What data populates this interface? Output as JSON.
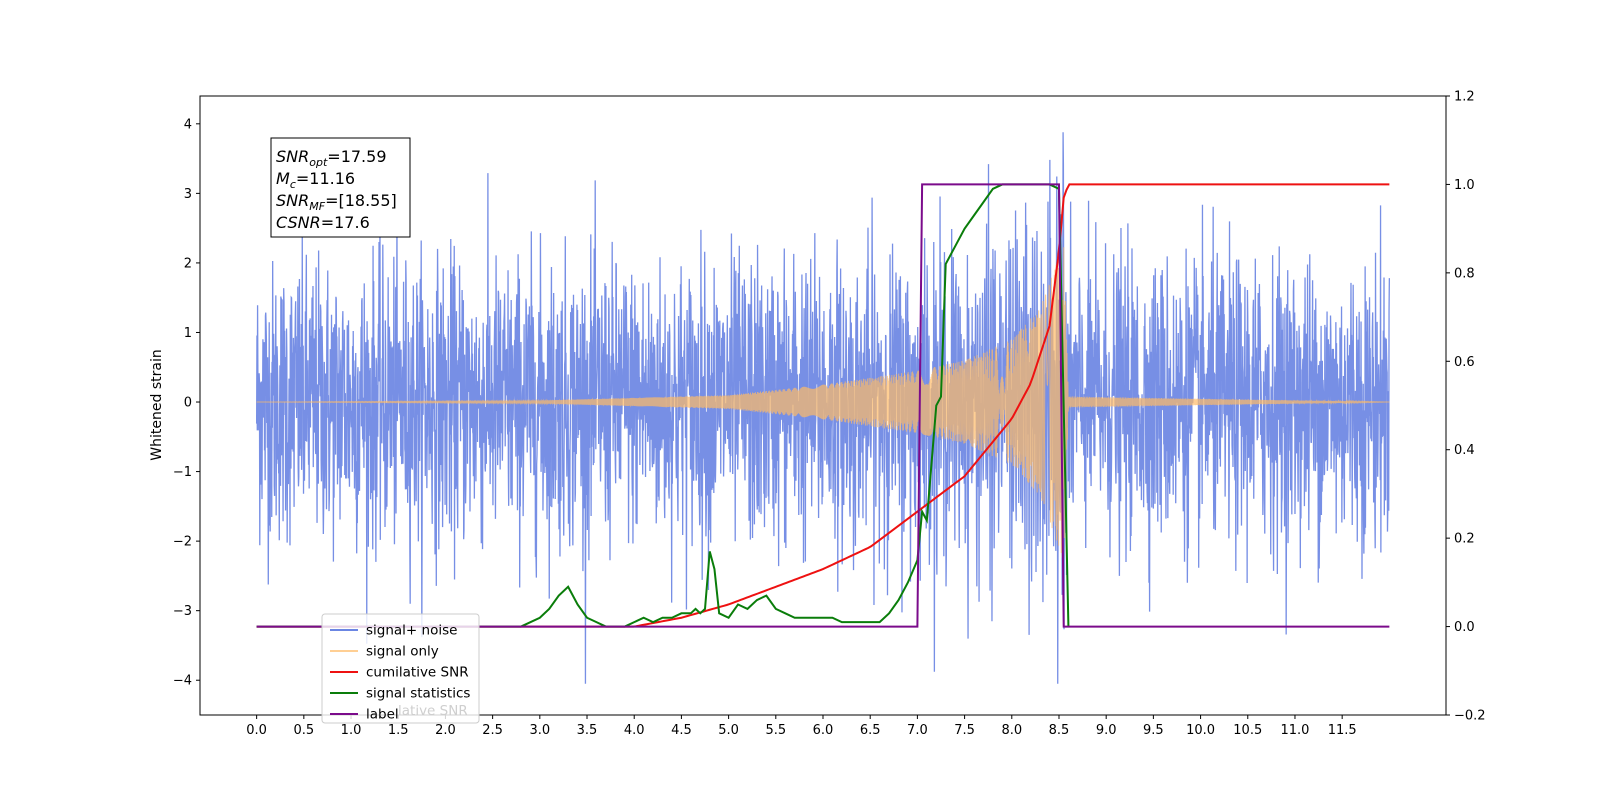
{
  "chart_data": {
    "type": "line",
    "title": "",
    "xlabel": "",
    "ylabel": "Whitened strain",
    "xlim": [
      -0.6,
      12.6
    ],
    "ylim": [
      -4.5,
      4.4
    ],
    "y2lim": [
      -0.2,
      1.2
    ],
    "x_ticks": [
      "0.0",
      "0.5",
      "1.0",
      "1.5",
      "2.0",
      "2.5",
      "3.0",
      "3.5",
      "4.0",
      "4.5",
      "5.0",
      "5.5",
      "6.0",
      "6.5",
      "7.0",
      "7.5",
      "8.0",
      "8.5",
      "9.0",
      "9.5",
      "10.0",
      "10.5",
      "11.0",
      "11.5"
    ],
    "x_tick_values": [
      0,
      0.5,
      1,
      1.5,
      2,
      2.5,
      3,
      3.5,
      4,
      4.5,
      5,
      5.5,
      6,
      6.5,
      7,
      7.5,
      8,
      8.5,
      9,
      9.5,
      10,
      10.5,
      11,
      11.5
    ],
    "y_ticks": [
      "−4",
      "−3",
      "−2",
      "−1",
      "0",
      "1",
      "2",
      "3",
      "4"
    ],
    "y_tick_values": [
      -4,
      -3,
      -2,
      -1,
      0,
      1,
      2,
      3,
      4
    ],
    "y2_ticks": [
      "−0.2",
      "0.0",
      "0.2",
      "0.4",
      "0.6",
      "0.8",
      "1.0",
      "1.2"
    ],
    "y2_tick_values": [
      -0.2,
      0,
      0.2,
      0.4,
      0.6,
      0.8,
      1.0,
      1.2
    ],
    "grid": false,
    "legend_position": "lower-left",
    "series": [
      {
        "name": "signal+ noise",
        "color": "#6b86e3",
        "axis": "left",
        "kind": "noise",
        "x_range": [
          0,
          12.0
        ],
        "typical_amplitude": 2.0,
        "max_value": 4.0,
        "min_value": -4.05
      },
      {
        "name": "signal only",
        "color": "#ffbb66",
        "axis": "left",
        "kind": "chirp",
        "x_range": [
          0,
          12.0
        ],
        "merger_time": 8.55,
        "peak_amplitude": 2.3,
        "envelope": {
          "x": [
            0,
            3.0,
            5.0,
            6.0,
            7.0,
            7.5,
            8.0,
            8.3,
            8.45,
            8.55,
            8.6,
            12.0
          ],
          "y": [
            0.0,
            0.02,
            0.1,
            0.25,
            0.45,
            0.6,
            0.9,
            1.35,
            1.9,
            2.3,
            0.08,
            0.0
          ]
        }
      },
      {
        "name": "cumilative SNR",
        "color": "#ee1111",
        "axis": "right",
        "x": [
          0,
          4.0,
          4.5,
          5.0,
          5.5,
          6.0,
          6.5,
          7.0,
          7.5,
          8.0,
          8.2,
          8.4,
          8.5,
          8.55,
          8.6,
          11.5,
          12.0
        ],
        "y": [
          0,
          0,
          0.02,
          0.05,
          0.09,
          0.13,
          0.18,
          0.26,
          0.34,
          0.47,
          0.55,
          0.68,
          0.85,
          0.97,
          1.0,
          1.0,
          1.0
        ]
      },
      {
        "name": "signal statistics",
        "color": "#0a7d0a",
        "axis": "right",
        "x": [
          0,
          2.8,
          3.0,
          3.1,
          3.2,
          3.3,
          3.4,
          3.5,
          3.6,
          3.7,
          3.8,
          3.9,
          4.0,
          4.1,
          4.2,
          4.3,
          4.4,
          4.5,
          4.6,
          4.65,
          4.7,
          4.75,
          4.8,
          4.85,
          4.9,
          5.0,
          5.1,
          5.2,
          5.3,
          5.4,
          5.5,
          5.6,
          5.7,
          5.8,
          5.9,
          6.0,
          6.1,
          6.2,
          6.3,
          6.4,
          6.5,
          6.6,
          6.7,
          6.8,
          6.9,
          7.0,
          7.05,
          7.1,
          7.2,
          7.25,
          7.3,
          7.4,
          7.5,
          7.6,
          7.7,
          7.8,
          7.9,
          8.0,
          8.2,
          8.4,
          8.5,
          8.6
        ],
        "y": [
          0,
          0,
          0.02,
          0.04,
          0.07,
          0.09,
          0.05,
          0.02,
          0.01,
          0.0,
          0.0,
          0.0,
          0.01,
          0.02,
          0.01,
          0.02,
          0.02,
          0.03,
          0.03,
          0.04,
          0.03,
          0.04,
          0.17,
          0.13,
          0.03,
          0.02,
          0.05,
          0.04,
          0.06,
          0.07,
          0.04,
          0.03,
          0.02,
          0.02,
          0.02,
          0.02,
          0.02,
          0.01,
          0.01,
          0.01,
          0.01,
          0.01,
          0.03,
          0.06,
          0.1,
          0.15,
          0.26,
          0.24,
          0.5,
          0.52,
          0.82,
          0.86,
          0.9,
          0.93,
          0.96,
          0.99,
          1.0,
          1.0,
          1.0,
          1.0,
          0.99,
          0.0
        ]
      },
      {
        "name": "label",
        "color": "#7b0b8b",
        "axis": "right",
        "x": [
          0,
          7.0,
          7.05,
          8.5,
          8.55,
          12.0
        ],
        "y": [
          0,
          0,
          1.0,
          1.0,
          0,
          0
        ]
      }
    ],
    "legend_entries": [
      "signal+ noise",
      "signal only",
      "cumilative SNR",
      "signal statistics",
      "label"
    ],
    "legend_overlap_text": "lative SNR",
    "annotations": [
      {
        "base": "SNR",
        "sub": "opt",
        "value": "=17.59"
      },
      {
        "base": "M",
        "sub": "c",
        "value": "=11.16"
      },
      {
        "base": "SNR",
        "sub": "MF",
        "value": "=[18.55]"
      },
      {
        "base": "CSNR",
        "sub": "",
        "value": "=17.6"
      }
    ]
  }
}
